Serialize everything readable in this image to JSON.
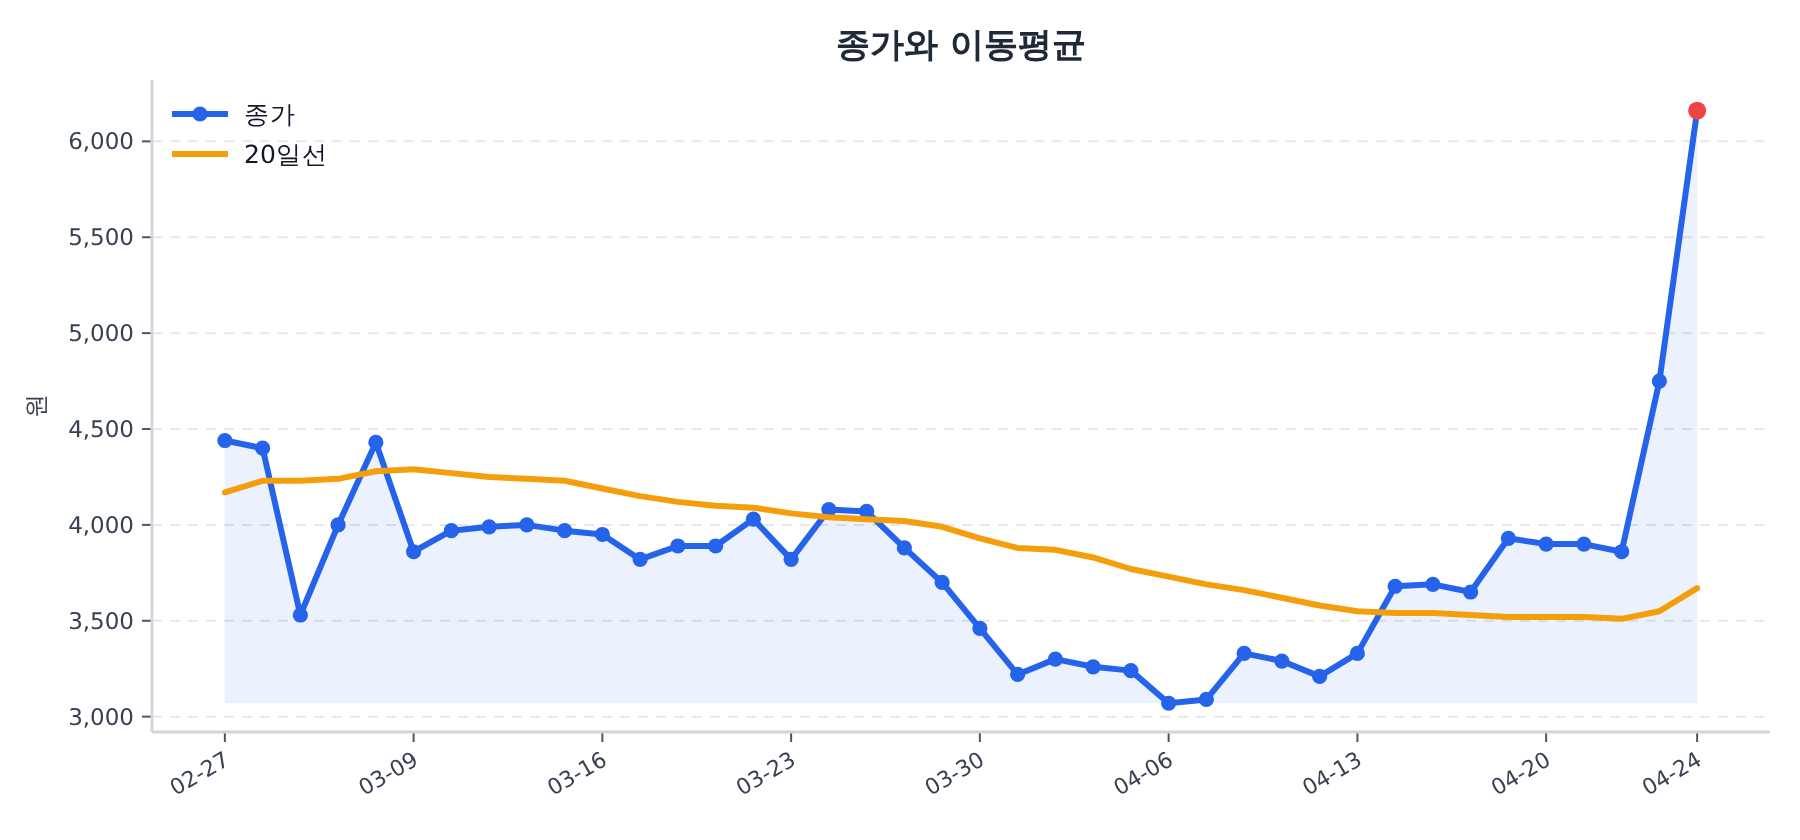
{
  "chart_data": {
    "type": "line",
    "title": "종가와 이동평균",
    "ylabel": "원",
    "categories": [
      "02-27",
      null,
      null,
      null,
      null,
      "03-09",
      null,
      null,
      null,
      null,
      "03-16",
      null,
      null,
      null,
      null,
      "03-23",
      null,
      null,
      null,
      null,
      "03-30",
      null,
      null,
      null,
      null,
      "04-06",
      null,
      null,
      null,
      null,
      "04-13",
      null,
      null,
      null,
      null,
      "04-20",
      null,
      null,
      null,
      "04-24"
    ],
    "series": [
      {
        "name": "종가",
        "type": "area",
        "color": "#2563eb",
        "marker": "circle",
        "values": [
          4440,
          4400,
          3530,
          4000,
          4430,
          3860,
          3970,
          3990,
          4000,
          3970,
          3950,
          3820,
          3890,
          3890,
          4030,
          3820,
          4080,
          4070,
          3880,
          3700,
          3460,
          3220,
          3300,
          3260,
          3240,
          3070,
          3090,
          3330,
          3290,
          3210,
          3330,
          3680,
          3690,
          3650,
          3930,
          3900,
          3900,
          3860,
          4750,
          6160
        ]
      },
      {
        "name": "20일선",
        "color": "#f59e0b",
        "marker": "none",
        "values": [
          4170,
          4230,
          4230,
          4240,
          4280,
          4290,
          4270,
          4250,
          4240,
          4230,
          4190,
          4150,
          4120,
          4100,
          4090,
          4060,
          4040,
          4030,
          4020,
          3990,
          3930,
          3880,
          3870,
          3830,
          3770,
          3730,
          3690,
          3660,
          3620,
          3580,
          3550,
          3540,
          3540,
          3530,
          3520,
          3520,
          3520,
          3510,
          3550,
          3670
        ]
      },
      {
        "type": "scatter",
        "color": "#ef4444",
        "x": [
          "04-24"
        ],
        "values": [
          6160
        ]
      }
    ],
    "ylim": [
      2920,
      6320
    ],
    "yticks": [
      {
        "value": 3000,
        "label": "3,000"
      },
      {
        "value": 3500,
        "label": "3,500"
      },
      {
        "value": 4000,
        "label": "4,000"
      },
      {
        "value": 4500,
        "label": "4,500"
      },
      {
        "value": 5000,
        "label": "5,000"
      },
      {
        "value": 5500,
        "label": "5,500"
      },
      {
        "value": 6000,
        "label": "6,000"
      }
    ],
    "grid": "y",
    "legend": "top left"
  }
}
